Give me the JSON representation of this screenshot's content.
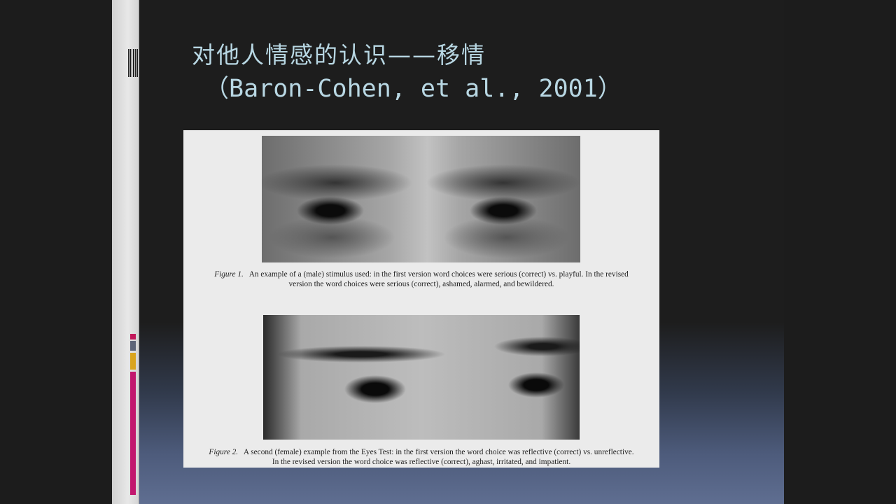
{
  "slide": {
    "title_cn": "对他人情感的认识——移情",
    "title_citation": "（Baron-Cohen, et al., 2001）"
  },
  "figures": [
    {
      "label": "Figure 1.",
      "caption_line1": "An example of a (male) stimulus used: in the first version word choices were serious (correct) vs. playful. In the revised",
      "caption_line2": "version the word choices were serious (correct), ashamed, alarmed, and bewildered."
    },
    {
      "label": "Figure 2.",
      "caption_line1": "A second (female) example from the Eyes Test: in the first version the word choice was reflective (correct) vs. unreflective.",
      "caption_line2": "In the revised version the word choice was reflective (correct), aghast, irritated, and impatient."
    }
  ],
  "colors": {
    "title": "#b8d7e3",
    "accent_pink": "#c2185b",
    "accent_gold": "#d9a41e",
    "accent_slate": "#5d6478"
  }
}
